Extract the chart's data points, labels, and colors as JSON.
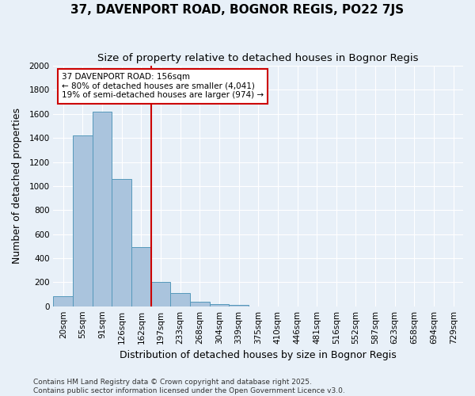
{
  "title": "37, DAVENPORT ROAD, BOGNOR REGIS, PO22 7JS",
  "subtitle": "Size of property relative to detached houses in Bognor Regis",
  "xlabel": "Distribution of detached houses by size in Bognor Regis",
  "ylabel": "Number of detached properties",
  "categories": [
    "20sqm",
    "55sqm",
    "91sqm",
    "126sqm",
    "162sqm",
    "197sqm",
    "233sqm",
    "268sqm",
    "304sqm",
    "339sqm",
    "375sqm",
    "410sqm",
    "446sqm",
    "481sqm",
    "516sqm",
    "552sqm",
    "587sqm",
    "623sqm",
    "658sqm",
    "694sqm",
    "729sqm"
  ],
  "values": [
    85,
    1420,
    1620,
    1060,
    490,
    205,
    110,
    38,
    20,
    14,
    0,
    0,
    0,
    0,
    0,
    0,
    0,
    0,
    0,
    0,
    0
  ],
  "bar_color": "#aac4dd",
  "bar_edge_color": "#5599bb",
  "vline_x": 4.5,
  "vline_color": "#cc0000",
  "annotation_text": "37 DAVENPORT ROAD: 156sqm\n← 80% of detached houses are smaller (4,041)\n19% of semi-detached houses are larger (974) →",
  "annotation_box_color": "#ffffff",
  "annotation_box_edge": "#cc0000",
  "footer_line1": "Contains HM Land Registry data © Crown copyright and database right 2025.",
  "footer_line2": "Contains public sector information licensed under the Open Government Licence v3.0.",
  "ylim": [
    0,
    2000
  ],
  "yticks": [
    0,
    200,
    400,
    600,
    800,
    1000,
    1200,
    1400,
    1600,
    1800,
    2000
  ],
  "background_color": "#e8f0f8",
  "grid_color": "#ffffff",
  "title_fontsize": 11,
  "subtitle_fontsize": 9.5,
  "label_fontsize": 9,
  "tick_fontsize": 7.5,
  "footer_fontsize": 6.5,
  "annotation_fontsize": 7.5
}
